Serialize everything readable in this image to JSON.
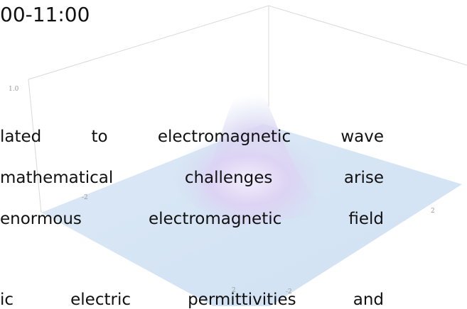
{
  "header": {
    "title": "00-11:00"
  },
  "body": {
    "lines": [
      "lated to electromagnetic wave",
      "mathematical challenges arise",
      "enormous electromagnetic field",
      "ic electric permittivities and"
    ]
  },
  "plot": {
    "tick_labels": [
      "1.0",
      "-2",
      "2",
      "2",
      "-2"
    ]
  }
}
